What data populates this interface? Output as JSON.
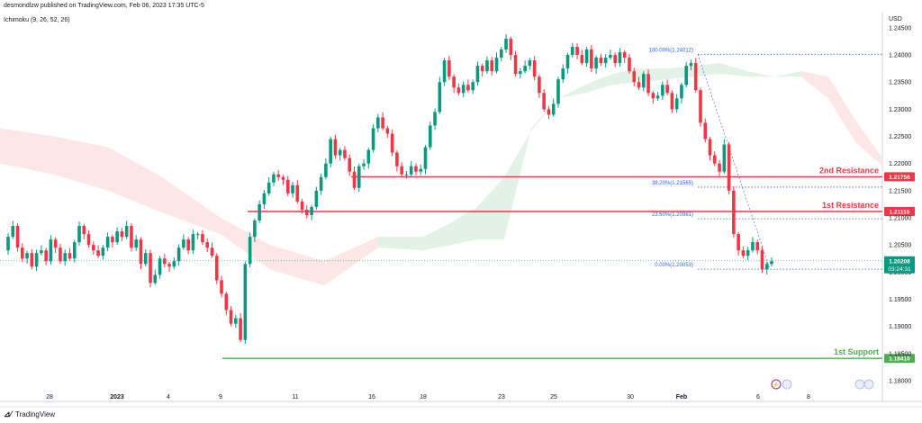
{
  "header": {
    "published": "desmondlzw published on TradingView.com, Feb 06, 2023 17:35 UTC-5",
    "indicator": "Ichimoku (9, 26, 52, 26)",
    "currency": "USD"
  },
  "footer": {
    "brand": "TradingView",
    "logo": "tradingview-logo-icon"
  },
  "colors": {
    "up": "#089981",
    "down": "#f23645",
    "resistance": "#f23645",
    "support": "#4caf50",
    "fib": "#2962ff",
    "kumo_bull": "#dff1e3",
    "kumo_bear": "#fde3e3",
    "price_tag": "#089981"
  },
  "chart_data": {
    "type": "candlestick",
    "y_axis": {
      "ticks": [
        "1.24500",
        "1.24000",
        "1.23500",
        "1.23000",
        "1.22500",
        "1.22000",
        "1.21500",
        "1.21000",
        "1.20500",
        "1.20000",
        "1.19500",
        "1.19000",
        "1.18500",
        "1.18000"
      ],
      "range": [
        1.1785,
        1.2478
      ]
    },
    "x_axis": {
      "ticks": [
        "28",
        "2023",
        "4",
        "9",
        "11",
        "16",
        "18",
        "23",
        "25",
        "30",
        "Feb",
        "6",
        "8"
      ]
    },
    "levels": [
      {
        "name": "2nd Resistance",
        "value": 1.21756,
        "label": "1.21756",
        "color": "#f23645"
      },
      {
        "name": "1st Resistance",
        "value": 1.21116,
        "label": "1.21116",
        "color": "#f23645"
      },
      {
        "name": "1st Support",
        "value": 1.1841,
        "label": "1.18410",
        "color": "#4caf50"
      }
    ],
    "fibonacci": [
      {
        "label": "100.00%(1.24012)",
        "value": 1.24012
      },
      {
        "label": "38.20%(1.21565)",
        "value": 1.21565
      },
      {
        "label": "23.60%(1.20981)",
        "value": 1.20981
      },
      {
        "label": "0.00%(1.20053)",
        "value": 1.20053
      }
    ],
    "current_price": {
      "value": 1.20208,
      "label": "1.20208",
      "countdown": "03:24:31"
    },
    "closes": [
      1.2065,
      1.2085,
      1.2045,
      1.2025,
      1.2035,
      1.201,
      1.2035,
      1.204,
      1.202,
      1.206,
      1.2045,
      1.202,
      1.2035,
      1.2025,
      1.2055,
      1.2085,
      1.207,
      1.205,
      1.204,
      1.203,
      1.2045,
      1.2065,
      1.2055,
      1.2075,
      1.2065,
      1.2085,
      1.2045,
      1.206,
      1.2015,
      1.2035,
      1.198,
      1.1995,
      1.2025,
      1.2015,
      1.201,
      1.202,
      1.2045,
      1.206,
      1.204,
      1.207,
      1.207,
      1.2055,
      1.2045,
      1.203,
      1.1985,
      1.196,
      1.193,
      1.1905,
      1.1915,
      1.1875,
      1.2015,
      1.2065,
      1.2095,
      1.2125,
      1.2145,
      1.2165,
      1.218,
      1.2175,
      1.217,
      1.2145,
      1.216,
      1.213,
      1.2115,
      1.2105,
      1.212,
      1.215,
      1.2175,
      1.22,
      1.2245,
      1.2215,
      1.2225,
      1.221,
      1.2185,
      1.2155,
      1.2195,
      1.22,
      1.2225,
      1.2265,
      1.2285,
      1.2265,
      1.2255,
      1.222,
      1.2195,
      1.218,
      1.218,
      1.2195,
      1.2185,
      1.219,
      1.223,
      1.227,
      1.2295,
      1.235,
      1.239,
      1.236,
      1.234,
      1.233,
      1.2345,
      1.2335,
      1.235,
      1.238,
      1.237,
      1.239,
      1.237,
      1.2395,
      1.241,
      1.243,
      1.24,
      1.2365,
      1.237,
      1.238,
      1.239,
      1.236,
      1.233,
      1.23,
      1.229,
      1.231,
      1.2355,
      1.2375,
      1.24,
      1.2415,
      1.24,
      1.2385,
      1.241,
      1.2375,
      1.2395,
      1.2385,
      1.2395,
      1.24,
      1.2385,
      1.2405,
      1.2395,
      1.237,
      1.235,
      1.234,
      1.2365,
      1.233,
      1.232,
      1.2325,
      1.2345,
      1.233,
      1.23,
      1.232,
      1.2345,
      1.238,
      1.2385,
      1.2335,
      1.2275,
      1.2245,
      1.2215,
      1.22,
      1.2185,
      1.2235,
      1.215,
      1.207,
      1.204,
      1.203,
      1.204,
      1.2055,
      1.204,
      1.2005,
      1.2015,
      1.202
    ]
  }
}
